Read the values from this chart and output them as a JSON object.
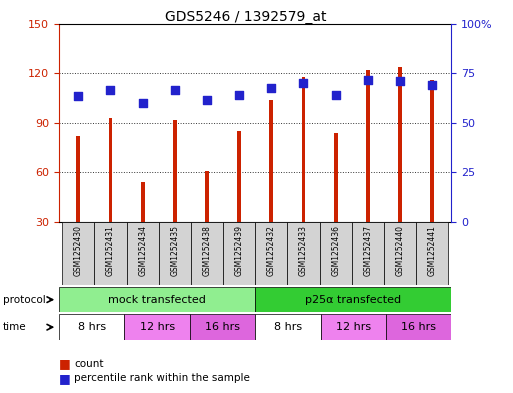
{
  "title": "GDS5246 / 1392579_at",
  "samples": [
    "GSM1252430",
    "GSM1252431",
    "GSM1252434",
    "GSM1252435",
    "GSM1252438",
    "GSM1252439",
    "GSM1252432",
    "GSM1252433",
    "GSM1252436",
    "GSM1252437",
    "GSM1252440",
    "GSM1252441"
  ],
  "counts": [
    82,
    93,
    54,
    92,
    61,
    85,
    104,
    118,
    84,
    122,
    124,
    116
  ],
  "percentile_vals": [
    106,
    110,
    102,
    110,
    104,
    107,
    111,
    114,
    107,
    116,
    115,
    113
  ],
  "ylim_left": [
    30,
    150
  ],
  "ylim_right": [
    0,
    100
  ],
  "yticks_left": [
    30,
    60,
    90,
    120,
    150
  ],
  "yticks_right": [
    0,
    25,
    50,
    75,
    100
  ],
  "ytick_right_labels": [
    "0",
    "25",
    "50",
    "75",
    "100%"
  ],
  "protocol_labels": [
    "mock transfected",
    "p25α transfected"
  ],
  "protocol_colors": [
    "#90ee90",
    "#33cc33"
  ],
  "time_info": [
    [
      0,
      2,
      "#ffffff",
      "8 hrs"
    ],
    [
      2,
      4,
      "#ee82ee",
      "12 hrs"
    ],
    [
      4,
      6,
      "#dd66dd",
      "16 hrs"
    ],
    [
      6,
      8,
      "#ffffff",
      "8 hrs"
    ],
    [
      8,
      10,
      "#ee82ee",
      "12 hrs"
    ],
    [
      10,
      12,
      "#dd66dd",
      "16 hrs"
    ]
  ],
  "bar_color": "#cc2200",
  "dot_color": "#2222cc",
  "dot_size": 28,
  "bar_width": 0.12,
  "bg_color": "#ffffff",
  "sample_bg": "#d3d3d3",
  "left_axis_color": "#cc2200",
  "right_axis_color": "#2222cc",
  "grid_color": "#333333",
  "border_color": "#000000"
}
